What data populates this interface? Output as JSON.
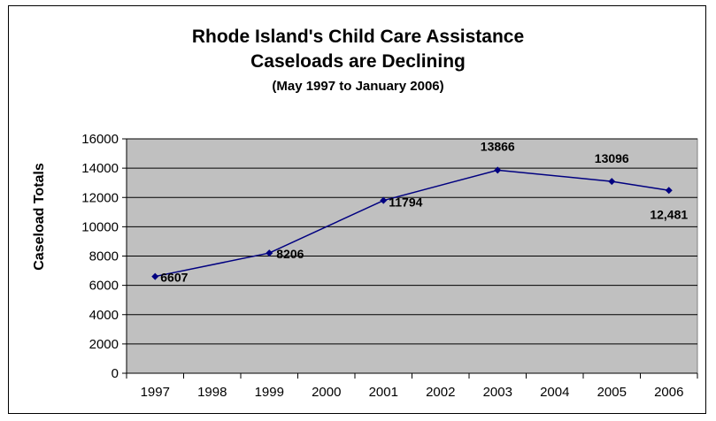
{
  "chart_data": {
    "type": "line",
    "title": "Rhode Island's Child Care Assistance",
    "title_line2": "Caseloads are Declining",
    "subtitle": "(May 1997 to January 2006)",
    "ylabel": "Caseload Totals",
    "xlabel": "",
    "categories": [
      "1997",
      "1998",
      "1999",
      "2000",
      "2001",
      "2002",
      "2003",
      "2004",
      "2005",
      "2006"
    ],
    "ylim": [
      0,
      16000
    ],
    "yticks": [
      0,
      2000,
      4000,
      6000,
      8000,
      10000,
      12000,
      14000,
      16000
    ],
    "grid": true,
    "legend": "none",
    "plot_background": "#c0c0c0",
    "series": [
      {
        "color": "#000080",
        "points": [
          {
            "x": "1997",
            "y": 6607,
            "label": "6607"
          },
          {
            "x": "1999",
            "y": 8206,
            "label": "8206"
          },
          {
            "x": "2001",
            "y": 11794,
            "label": "11794"
          },
          {
            "x": "2003",
            "y": 13866,
            "label": "13866"
          },
          {
            "x": "2005",
            "y": 13096,
            "label": "13096"
          },
          {
            "x": "2006",
            "y": 12481,
            "label": "12,481"
          }
        ]
      }
    ]
  }
}
